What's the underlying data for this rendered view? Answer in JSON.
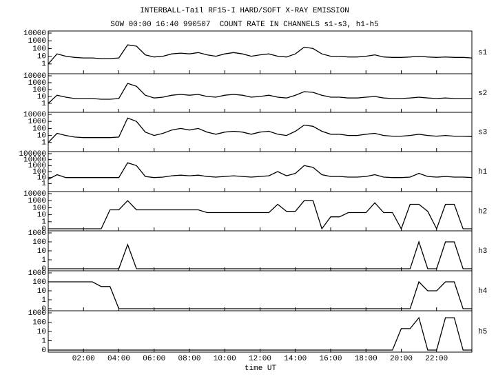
{
  "chart_data": {
    "type": "line",
    "title": "INTERBALL-Tail RF15-I HARD/SOFT X-RAY EMISSION",
    "subtitle": "SOW 00:00 16:40 990507  COUNT RATE IN CHANNELS s1-s3, h1-h5",
    "xlabel": "time UT",
    "xlim": [
      0,
      24
    ],
    "xticks": [
      {
        "value": 2,
        "label": "02:00"
      },
      {
        "value": 4,
        "label": "04:00"
      },
      {
        "value": 6,
        "label": "06:00"
      },
      {
        "value": 8,
        "label": "08:00"
      },
      {
        "value": 10,
        "label": "10:00"
      },
      {
        "value": 12,
        "label": "12:00"
      },
      {
        "value": 14,
        "label": "14:00"
      },
      {
        "value": 16,
        "label": "16:00"
      },
      {
        "value": 18,
        "label": "18:00"
      },
      {
        "value": 20,
        "label": "20:00"
      },
      {
        "value": 22,
        "label": "22:00"
      }
    ],
    "yscale": "log",
    "x": [
      0,
      0.5,
      1,
      1.5,
      2,
      2.5,
      3,
      3.5,
      4,
      4.5,
      5,
      5.5,
      6,
      6.5,
      7,
      7.5,
      8,
      8.5,
      9,
      9.5,
      10,
      10.5,
      11,
      11.5,
      12,
      12.5,
      13,
      13.5,
      14,
      14.5,
      15,
      15.5,
      16,
      16.5,
      17,
      17.5,
      18,
      18.5,
      19,
      19.5,
      20,
      20.5,
      21,
      21.5,
      22,
      22.5,
      23,
      23.5,
      24
    ],
    "series": [
      {
        "name": "s1",
        "color": "#000000",
        "ylim": [
          0,
          10000
        ],
        "yticks": [
          1,
          10,
          100,
          1000,
          10000
        ],
        "values": [
          1,
          20,
          10,
          7,
          6,
          6,
          5,
          5,
          6,
          300,
          200,
          15,
          8,
          10,
          20,
          25,
          20,
          30,
          15,
          10,
          20,
          30,
          20,
          10,
          15,
          20,
          10,
          8,
          20,
          150,
          100,
          20,
          10,
          10,
          8,
          8,
          10,
          15,
          8,
          7,
          7,
          8,
          10,
          8,
          7,
          8,
          7,
          7,
          6
        ]
      },
      {
        "name": "s2",
        "color": "#000000",
        "ylim": [
          0,
          10000
        ],
        "yticks": [
          1,
          10,
          100,
          1000,
          10000
        ],
        "values": [
          1,
          15,
          8,
          5,
          5,
          5,
          4,
          4,
          5,
          800,
          300,
          15,
          6,
          8,
          15,
          20,
          15,
          20,
          10,
          8,
          15,
          20,
          15,
          8,
          10,
          15,
          8,
          6,
          15,
          50,
          40,
          15,
          8,
          8,
          6,
          6,
          8,
          10,
          6,
          5,
          5,
          6,
          8,
          6,
          5,
          6,
          5,
          5,
          5
        ]
      },
      {
        "name": "s3",
        "color": "#000000",
        "ylim": [
          0,
          10000
        ],
        "yticks": [
          1,
          10,
          100,
          1000,
          10000
        ],
        "values": [
          1,
          20,
          10,
          6,
          5,
          5,
          5,
          5,
          6,
          3000,
          1000,
          30,
          10,
          20,
          60,
          100,
          60,
          100,
          30,
          15,
          30,
          40,
          30,
          15,
          30,
          40,
          15,
          10,
          40,
          300,
          200,
          40,
          15,
          15,
          10,
          10,
          15,
          20,
          10,
          8,
          8,
          10,
          15,
          10,
          8,
          10,
          8,
          8,
          7
        ]
      },
      {
        "name": "h1",
        "color": "#000000",
        "ylim": [
          0,
          100000
        ],
        "yticks": [
          1,
          10,
          100,
          1000,
          10000,
          100000
        ],
        "values": [
          5,
          30,
          10,
          10,
          10,
          10,
          10,
          10,
          10,
          3000,
          1000,
          15,
          10,
          12,
          20,
          25,
          20,
          25,
          15,
          12,
          15,
          20,
          15,
          12,
          15,
          20,
          100,
          20,
          50,
          1000,
          500,
          30,
          15,
          15,
          12,
          12,
          15,
          30,
          12,
          10,
          10,
          12,
          50,
          15,
          12,
          15,
          12,
          12,
          10
        ]
      },
      {
        "name": "h2",
        "color": "#000000",
        "ylim": [
          0,
          10000
        ],
        "yticks": [
          0,
          1,
          10,
          100,
          1000,
          10000
        ],
        "values": [
          0,
          0,
          0,
          0,
          0,
          0,
          0,
          50,
          50,
          1000,
          50,
          50,
          50,
          50,
          50,
          50,
          50,
          50,
          20,
          20,
          20,
          20,
          20,
          20,
          20,
          20,
          300,
          30,
          30,
          1000,
          1000,
          0,
          5,
          5,
          20,
          20,
          20,
          500,
          20,
          20,
          0,
          300,
          300,
          30,
          0,
          300,
          300,
          0,
          0
        ]
      },
      {
        "name": "h3",
        "color": "#000000",
        "ylim": [
          0,
          1000
        ],
        "yticks": [
          0,
          1,
          10,
          100,
          1000
        ],
        "values": [
          0,
          0,
          0,
          0,
          0,
          0,
          0,
          0,
          0,
          50,
          0,
          0,
          0,
          0,
          0,
          0,
          0,
          0,
          0,
          0,
          0,
          0,
          0,
          0,
          0,
          0,
          0,
          0,
          0,
          0,
          0,
          0,
          0,
          0,
          0,
          0,
          0,
          0,
          0,
          0,
          0,
          0,
          100,
          0,
          0,
          100,
          100,
          0,
          0
        ]
      },
      {
        "name": "h4",
        "color": "#000000",
        "ylim": [
          0,
          1000
        ],
        "yticks": [
          0,
          1,
          10,
          100,
          1000
        ],
        "values": [
          100,
          100,
          100,
          100,
          100,
          100,
          30,
          30,
          0,
          0,
          0,
          0,
          0,
          0,
          0,
          0,
          0,
          0,
          0,
          0,
          0,
          0,
          0,
          0,
          0,
          0,
          0,
          0,
          0,
          0,
          0,
          0,
          0,
          0,
          0,
          0,
          0,
          0,
          0,
          0,
          0,
          0,
          100,
          10,
          10,
          100,
          100,
          0,
          0
        ]
      },
      {
        "name": "h5",
        "color": "#000000",
        "ylim": [
          0,
          1000
        ],
        "yticks": [
          0,
          1,
          10,
          100,
          1000
        ],
        "values": [
          0,
          0,
          0,
          0,
          0,
          0,
          0,
          0,
          0,
          0,
          0,
          0,
          0,
          0,
          0,
          0,
          0,
          0,
          0,
          0,
          0,
          0,
          0,
          0,
          0,
          0,
          0,
          0,
          0,
          0,
          0,
          0,
          0,
          0,
          0,
          0,
          0,
          0,
          0,
          0,
          20,
          20,
          300,
          0,
          0,
          300,
          300,
          0,
          0
        ]
      }
    ]
  }
}
